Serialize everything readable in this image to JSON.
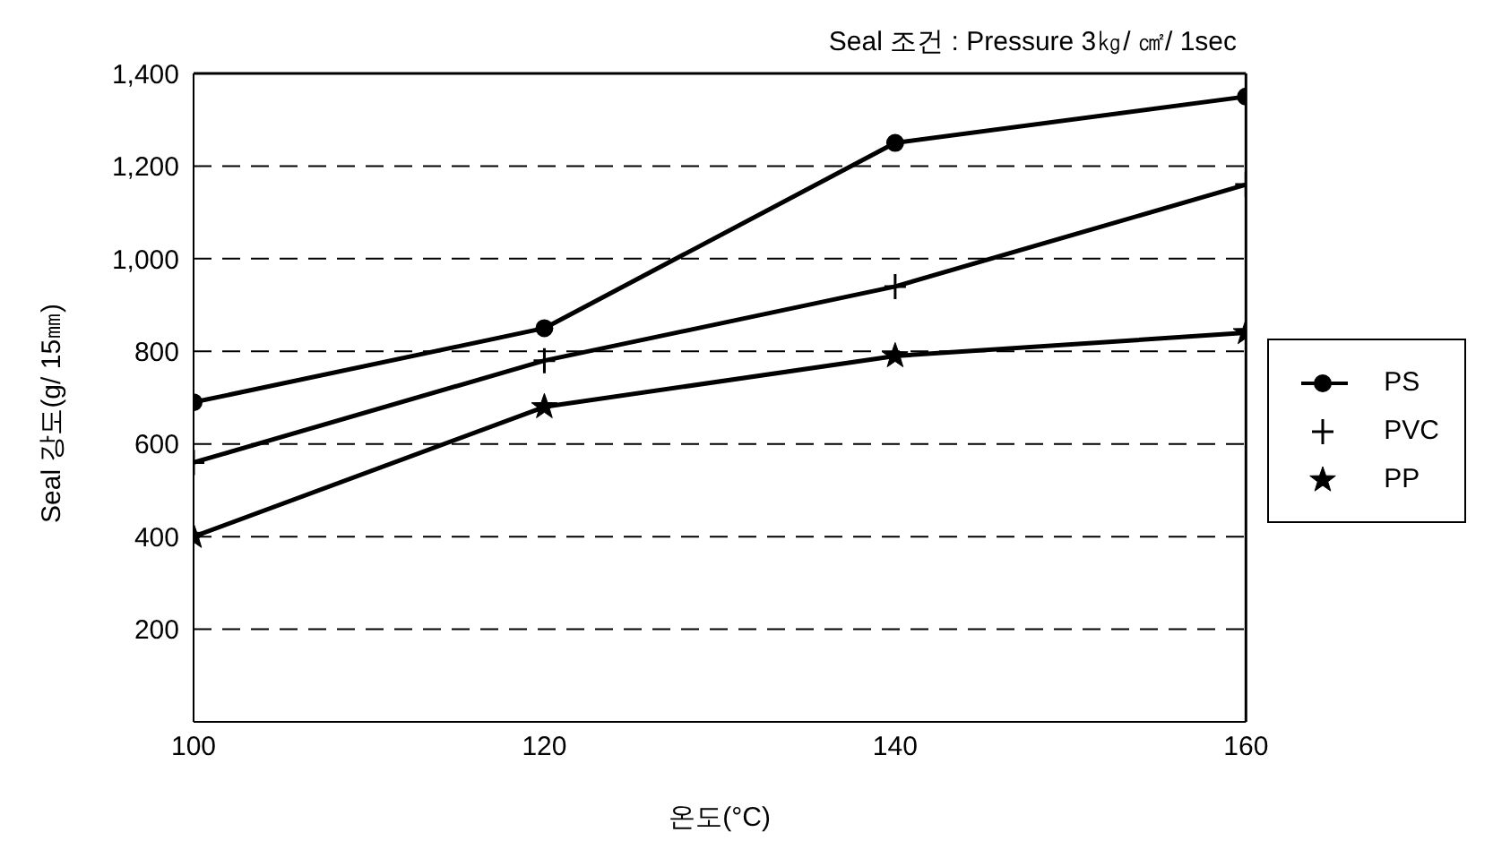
{
  "chart_data": {
    "type": "line",
    "xlabel": "온도(°C)",
    "ylabel": "Seal 강도(g/ 15㎜)",
    "annotations": [
      "Seal 조건 : Pressure 3㎏/ ㎠/ 1sec"
    ],
    "x": [
      100,
      120,
      140,
      160
    ],
    "series": [
      {
        "name": "PS",
        "color": "#000000",
        "marker": "circle",
        "values": [
          690,
          850,
          1250,
          1350
        ]
      },
      {
        "name": "PVC",
        "color": "#000000",
        "marker": "cross",
        "values": [
          560,
          780,
          940,
          1160
        ]
      },
      {
        "name": "PP",
        "color": "#000000",
        "marker": "star",
        "values": [
          400,
          680,
          790,
          840
        ]
      }
    ],
    "xlim": [
      100,
      160
    ],
    "xticks": [
      100,
      120,
      140,
      160
    ],
    "ylim": [
      0,
      1400
    ],
    "yticks": [
      {
        "value": 200,
        "label": "200"
      },
      {
        "value": 400,
        "label": "400"
      },
      {
        "value": 600,
        "label": "600"
      },
      {
        "value": 800,
        "label": "800"
      },
      {
        "value": 1000,
        "label": "1,000"
      },
      {
        "value": 1200,
        "label": "1,200"
      },
      {
        "value": 1400,
        "label": "1,400"
      }
    ],
    "grid": "y",
    "legend": "right",
    "line_style": "solid"
  }
}
